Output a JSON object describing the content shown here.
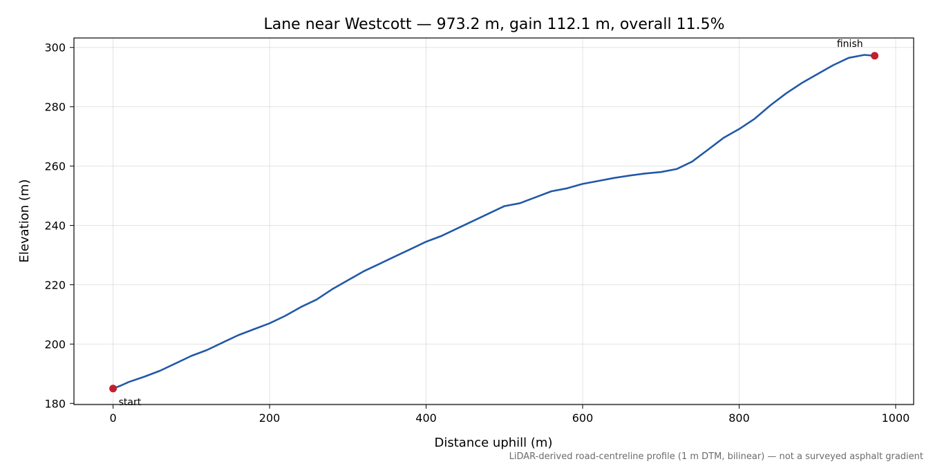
{
  "chart_data": {
    "type": "line",
    "title": "Lane near Westcott — 973.2 m, gain 112.1 m, overall 11.5%",
    "xlabel": "Distance uphill (m)",
    "ylabel": "Elevation (m)",
    "xlim": [
      -50,
      1023
    ],
    "ylim": [
      179.6,
      303.2
    ],
    "xticks": [
      0,
      200,
      400,
      600,
      800,
      1000
    ],
    "yticks": [
      180,
      200,
      220,
      240,
      260,
      280,
      300
    ],
    "grid": true,
    "line_color": "#2158a8",
    "marker_color": "#c0202e",
    "series": [
      {
        "x": [
          0,
          10,
          20,
          40,
          60,
          80,
          100,
          120,
          140,
          160,
          180,
          200,
          220,
          240,
          260,
          280,
          300,
          320,
          340,
          360,
          380,
          400,
          420,
          440,
          460,
          480,
          500,
          520,
          540,
          560,
          580,
          600,
          620,
          640,
          660,
          680,
          700,
          720,
          740,
          760,
          780,
          800,
          820,
          840,
          860,
          880,
          900,
          920,
          940,
          960,
          973.2
        ],
        "y": [
          185.0,
          186.0,
          187.2,
          189.0,
          191.0,
          193.5,
          196.0,
          198.0,
          200.5,
          203.0,
          205.0,
          207.0,
          209.5,
          212.5,
          215.0,
          218.5,
          221.5,
          224.5,
          227.0,
          229.5,
          232.0,
          234.5,
          236.5,
          239.0,
          241.5,
          244.0,
          246.5,
          247.5,
          249.5,
          251.5,
          252.5,
          254.0,
          255.0,
          256.0,
          256.8,
          257.5,
          258.0,
          259.0,
          261.5,
          265.5,
          269.5,
          272.5,
          276.0,
          280.5,
          284.5,
          288.0,
          291.0,
          294.0,
          296.5,
          297.5,
          297.2
        ]
      }
    ],
    "markers": [
      {
        "x": 0,
        "y": 185.0,
        "label": "start"
      },
      {
        "x": 973.2,
        "y": 297.2,
        "label": "finish"
      }
    ],
    "footnote": "LiDAR-derived road-centreline profile (1 m DTM, bilinear) — not a surveyed asphalt gradient"
  }
}
